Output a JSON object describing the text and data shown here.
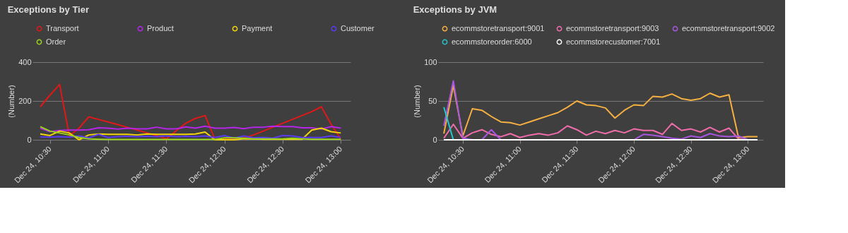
{
  "chart_data": [
    {
      "type": "line",
      "title": "Exceptions by Tier",
      "ylabel": "(Number)",
      "legend": "top left",
      "grid": "y",
      "marker": "none",
      "line_style": "solid",
      "xlim": [
        "--12-24T10:21",
        "--12-24T13:05"
      ],
      "ylim": [
        0,
        400
      ],
      "yticks": [
        0,
        200,
        400
      ],
      "xticks": [
        {
          "value": "--12-24T10:30",
          "label": "Dec 24, 10:30"
        },
        {
          "value": "--12-24T11:00",
          "label": "Dec 24, 11:00"
        },
        {
          "value": "--12-24T11:30",
          "label": "Dec 24, 11:30"
        },
        {
          "value": "--12-24T12:00",
          "label": "Dec 24, 12:00"
        },
        {
          "value": "--12-24T12:30",
          "label": "Dec 24, 12:30"
        },
        {
          "value": "--12-24T13:00",
          "label": "Dec 24, 13:00"
        }
      ],
      "x": [
        "--12-24T10:25",
        "--12-24T10:30",
        "--12-24T10:35",
        "--12-24T10:40",
        "--12-24T10:45",
        "--12-24T10:50",
        "--12-24T10:55",
        "--12-24T11:00",
        "--12-24T11:05",
        "--12-24T11:10",
        "--12-24T11:15",
        "--12-24T11:20",
        "--12-24T11:25",
        "--12-24T11:30",
        "--12-24T11:35",
        "--12-24T11:40",
        "--12-24T11:45",
        "--12-24T11:50",
        "--12-24T11:55",
        "--12-24T12:00",
        "--12-24T12:05",
        "--12-24T12:10",
        "--12-24T12:15",
        "--12-24T12:20",
        "--12-24T12:25",
        "--12-24T12:30",
        "--12-24T12:35",
        "--12-24T12:40",
        "--12-24T12:45",
        "--12-24T12:50",
        "--12-24T12:55",
        "--12-24T13:00"
      ],
      "series": [
        {
          "name": "Transport",
          "color": "#e01818",
          "values": [
            170,
            230,
            285,
            20,
            60,
            118,
            105,
            92,
            78,
            64,
            50,
            36,
            22,
            5,
            45,
            85,
            110,
            125,
            5,
            5,
            5,
            10,
            25,
            45,
            65,
            85,
            105,
            125,
            145,
            170,
            80,
            5
          ]
        },
        {
          "name": "Product",
          "color": "#b526e8",
          "values": [
            60,
            42,
            48,
            50,
            50,
            52,
            62,
            60,
            55,
            60,
            56,
            56,
            65,
            56,
            56,
            66,
            60,
            70,
            60,
            60,
            64,
            57,
            65,
            65,
            70,
            68,
            68,
            62,
            62,
            55,
            68,
            60
          ]
        },
        {
          "name": "Payment",
          "color": "#f2d40c",
          "values": [
            30,
            22,
            45,
            35,
            0,
            25,
            30,
            28,
            28,
            28,
            25,
            30,
            28,
            28,
            28,
            28,
            30,
            40,
            0,
            0,
            0,
            5,
            5,
            3,
            3,
            3,
            3,
            3,
            50,
            60,
            42,
            35
          ]
        },
        {
          "name": "Customer",
          "color": "#5a3cf0",
          "values": [
            15,
            14,
            16,
            14,
            20,
            10,
            28,
            12,
            16,
            18,
            16,
            18,
            16,
            20,
            16,
            18,
            16,
            20,
            12,
            22,
            8,
            20,
            10,
            12,
            8,
            22,
            20,
            12,
            12,
            12,
            20,
            12
          ]
        },
        {
          "name": "Order",
          "color": "#9ad61a",
          "values": [
            68,
            45,
            35,
            25,
            12,
            5,
            3,
            2,
            2,
            2,
            2,
            2,
            2,
            2,
            2,
            2,
            2,
            2,
            2,
            10,
            10,
            8,
            5,
            5,
            5,
            5,
            8,
            5,
            3,
            3,
            3,
            3
          ]
        }
      ]
    },
    {
      "type": "line",
      "title": "Exceptions by JVM",
      "ylabel": "(Number)",
      "legend": "top left",
      "grid": "y",
      "marker": "none",
      "line_style": "solid",
      "xlim": [
        "--12-24T10:17",
        "--12-24T13:08"
      ],
      "ylim": [
        0,
        100
      ],
      "yticks": [
        0,
        50,
        100
      ],
      "xticks": [
        {
          "value": "--12-24T10:30",
          "label": "Dec 24, 10:30"
        },
        {
          "value": "--12-24T11:00",
          "label": "Dec 24, 11:00"
        },
        {
          "value": "--12-24T11:30",
          "label": "Dec 24, 11:30"
        },
        {
          "value": "--12-24T12:00",
          "label": "Dec 24, 12:00"
        },
        {
          "value": "--12-24T12:30",
          "label": "Dec 24, 12:30"
        },
        {
          "value": "--12-24T13:00",
          "label": "Dec 24, 13:00"
        }
      ],
      "x": [
        "--12-24T10:20",
        "--12-24T10:25",
        "--12-24T10:30",
        "--12-24T10:35",
        "--12-24T10:40",
        "--12-24T10:45",
        "--12-24T10:50",
        "--12-24T10:55",
        "--12-24T11:00",
        "--12-24T11:05",
        "--12-24T11:10",
        "--12-24T11:15",
        "--12-24T11:20",
        "--12-24T11:25",
        "--12-24T11:30",
        "--12-24T11:35",
        "--12-24T11:40",
        "--12-24T11:45",
        "--12-24T11:50",
        "--12-24T11:55",
        "--12-24T12:00",
        "--12-24T12:05",
        "--12-24T12:10",
        "--12-24T12:15",
        "--12-24T12:20",
        "--12-24T12:25",
        "--12-24T12:30",
        "--12-24T12:35",
        "--12-24T12:40",
        "--12-24T12:45",
        "--12-24T12:50",
        "--12-24T12:55",
        "--12-24T13:00",
        "--12-24T13:05"
      ],
      "series": [
        {
          "name": "ecommstoretransport:9001",
          "color": "#f5b041",
          "values": [
            8,
            70,
            5,
            40,
            38,
            30,
            23,
            22,
            19,
            23,
            27,
            31,
            35,
            42,
            50,
            45,
            44,
            41,
            28,
            38,
            45,
            44,
            56,
            55,
            59,
            53,
            51,
            53,
            60,
            55,
            58,
            3,
            4,
            4
          ]
        },
        {
          "name": "ecommstoretransport:9003",
          "color": "#f06cab",
          "values": [
            2,
            20,
            2,
            9,
            13,
            7,
            4,
            8,
            3,
            6,
            8,
            6,
            9,
            18,
            13,
            6,
            11,
            8,
            12,
            9,
            14,
            12,
            12,
            7,
            21,
            12,
            14,
            10,
            16,
            10,
            15,
            1,
            0,
            0
          ]
        },
        {
          "name": "ecommstoretransport:9002",
          "color": "#a855e0",
          "values": [
            18,
            76,
            2,
            0,
            0,
            13,
            0,
            0,
            0,
            0,
            0,
            0,
            0,
            0,
            0,
            0,
            0,
            0,
            0,
            0,
            0,
            7,
            6,
            4,
            2,
            1,
            5,
            3,
            8,
            5,
            4,
            5,
            0,
            0
          ]
        },
        {
          "name": "ecommstoreorder:6000",
          "color": "#20c8d0",
          "values": [
            42,
            0,
            null,
            null,
            null,
            null,
            null,
            null,
            null,
            null,
            null,
            null,
            null,
            null,
            null,
            null,
            null,
            null,
            null,
            null,
            null,
            null,
            null,
            null,
            null,
            null,
            null,
            null,
            null,
            null,
            null,
            null,
            null,
            null
          ]
        },
        {
          "name": "ecommstorecustomer:7001",
          "color": "#ffffff",
          "values": [
            0,
            0,
            0,
            0,
            0,
            0,
            0,
            0,
            0,
            0,
            0,
            0,
            0,
            0,
            0,
            0,
            0,
            0,
            0,
            0,
            0,
            0,
            0,
            0,
            0,
            0,
            0,
            0,
            0,
            0,
            0,
            0,
            0,
            0
          ]
        }
      ]
    }
  ]
}
